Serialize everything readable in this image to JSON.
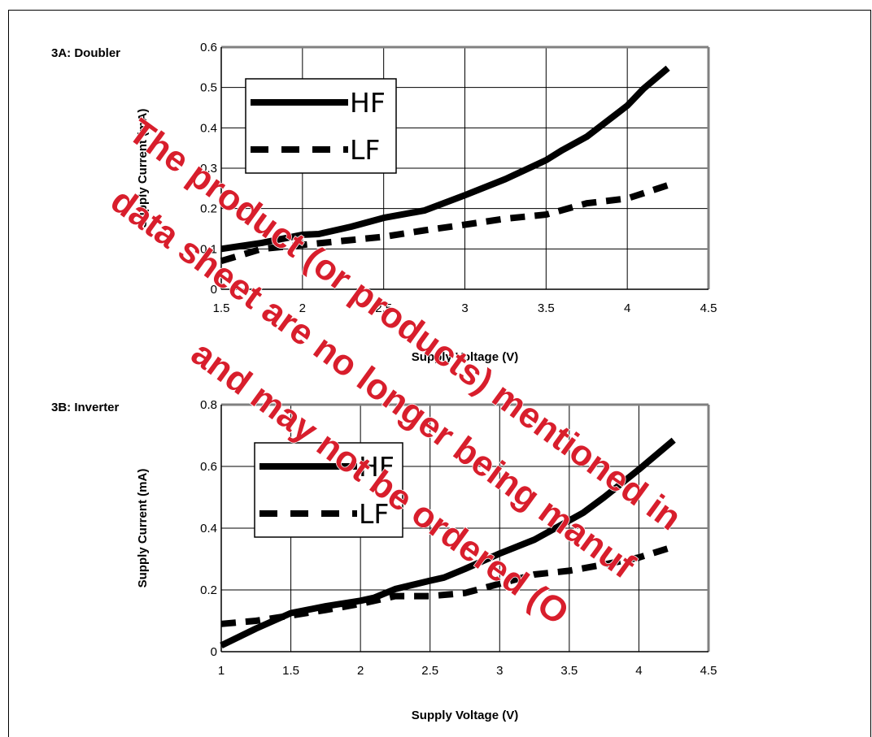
{
  "chart_data": [
    {
      "type": "line",
      "title": "3A: Doubler",
      "xlabel": "Supply Voltage (V)",
      "ylabel": "Supply  Current (mA)",
      "xlim": [
        1.5,
        4.5
      ],
      "ylim": [
        0,
        0.6
      ],
      "xticks": [
        1.5,
        2,
        2.5,
        3,
        3.5,
        4,
        4.5
      ],
      "yticks": [
        0,
        0.1,
        0.2,
        0.3,
        0.4,
        0.5,
        0.6
      ],
      "xtick_labels": [
        "1.5",
        "2",
        "2.5",
        "3",
        "3.5",
        "4",
        "4.5"
      ],
      "ytick_labels": [
        "0",
        "0.1",
        "0.2",
        "0.3",
        "0.4",
        "0.5",
        "0.6"
      ],
      "grid": true,
      "legend_position": "top-left",
      "series": [
        {
          "name": "HF",
          "style": "solid",
          "color": "#000000",
          "x": [
            1.5,
            1.75,
            2.0,
            2.1,
            2.3,
            2.5,
            2.75,
            3.0,
            3.25,
            3.5,
            3.6,
            3.75,
            4.0,
            4.1,
            4.25
          ],
          "y": [
            0.1,
            0.115,
            0.135,
            0.137,
            0.155,
            0.177,
            0.195,
            0.233,
            0.273,
            0.32,
            0.345,
            0.378,
            0.455,
            0.497,
            0.548
          ]
        },
        {
          "name": "LF",
          "style": "dashed",
          "color": "#000000",
          "x": [
            1.5,
            1.75,
            2.0,
            2.25,
            2.5,
            2.75,
            3.0,
            3.25,
            3.5,
            3.75,
            4.0,
            4.25
          ],
          "y": [
            0.07,
            0.1,
            0.11,
            0.12,
            0.13,
            0.146,
            0.16,
            0.175,
            0.185,
            0.213,
            0.225,
            0.258
          ]
        }
      ]
    },
    {
      "type": "line",
      "title": "3B: Inverter",
      "xlabel": "Supply Voltage (V)",
      "ylabel": "Supply  Current (mA)",
      "xlim": [
        1,
        4.5
      ],
      "ylim": [
        0,
        0.8
      ],
      "xticks": [
        1,
        1.5,
        2,
        2.5,
        3,
        3.5,
        4,
        4.5
      ],
      "yticks": [
        0,
        0.2,
        0.4,
        0.6,
        0.8
      ],
      "xtick_labels": [
        "1",
        "1.5",
        "2",
        "2.5",
        "3",
        "3.5",
        "4",
        "4.5"
      ],
      "ytick_labels": [
        "0",
        "0.2",
        "0.4",
        "0.6",
        "0.8"
      ],
      "grid": true,
      "legend_position": "top-left",
      "series": [
        {
          "name": "HF",
          "style": "solid",
          "color": "#000000",
          "x": [
            1.0,
            1.25,
            1.5,
            1.75,
            2.0,
            2.1,
            2.25,
            2.5,
            2.6,
            2.75,
            3.0,
            3.25,
            3.5,
            3.6,
            3.75,
            4.0,
            4.25
          ],
          "y": [
            0.02,
            0.075,
            0.125,
            0.147,
            0.165,
            0.175,
            0.203,
            0.23,
            0.24,
            0.268,
            0.318,
            0.363,
            0.425,
            0.45,
            0.5,
            0.59,
            0.685
          ]
        },
        {
          "name": "LF",
          "style": "dashed",
          "color": "#000000",
          "x": [
            1.0,
            1.25,
            1.5,
            1.75,
            2.0,
            2.25,
            2.5,
            2.75,
            3.0,
            3.25,
            3.5,
            3.75,
            4.0,
            4.25
          ],
          "y": [
            0.09,
            0.1,
            0.117,
            0.135,
            0.155,
            0.18,
            0.18,
            0.19,
            0.22,
            0.25,
            0.262,
            0.282,
            0.305,
            0.34
          ]
        }
      ]
    }
  ],
  "watermark": {
    "color": "#d81e2c",
    "lines": [
      "The product (or products) mentioned in",
      "data sheet are no longer being manuf",
      "and may not be ordered (O"
    ]
  }
}
